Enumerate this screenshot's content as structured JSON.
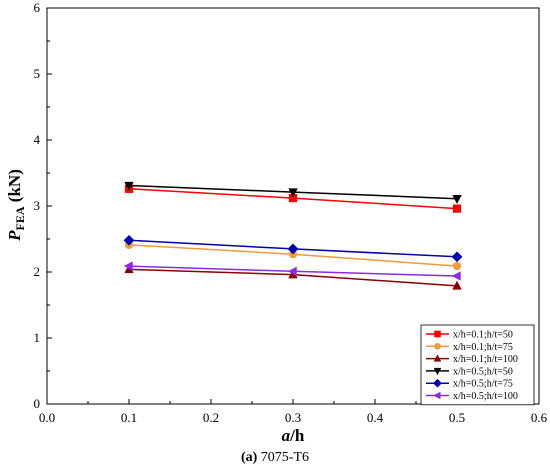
{
  "chart_data": {
    "type": "line",
    "caption_bold": "(a)",
    "caption_text": " 7075-T6",
    "xlabel_italic": "a",
    "xlabel_rest": "/h",
    "ylabel_main": "P",
    "ylabel_sub": "FEA",
    "ylabel_unit": " (kN)",
    "xlim": [
      0.0,
      0.6
    ],
    "ylim": [
      0,
      6
    ],
    "xticks": [
      "0.0",
      "0.1",
      "0.2",
      "0.3",
      "0.4",
      "0.5",
      "0.6"
    ],
    "yticks": [
      "0",
      "1",
      "2",
      "3",
      "4",
      "5",
      "6"
    ],
    "grid": false,
    "legend_position": "bottom-right",
    "x": [
      0.1,
      0.3,
      0.5
    ],
    "series": [
      {
        "name": "x/h=0.1;h/t=50",
        "color": "#ff0000",
        "marker": "square",
        "values": [
          3.26,
          3.12,
          2.96
        ]
      },
      {
        "name": "x/h=0.1;h/t=75",
        "color": "#f39a3b",
        "marker": "circle",
        "values": [
          2.41,
          2.27,
          2.09
        ]
      },
      {
        "name": "x/h=0.1;h/t=100",
        "color": "#8b0000",
        "marker": "triangle-up",
        "values": [
          2.04,
          1.96,
          1.79
        ]
      },
      {
        "name": "x/h=0.5;h/t=50",
        "color": "#000000",
        "marker": "triangle-down",
        "values": [
          3.31,
          3.21,
          3.11
        ]
      },
      {
        "name": "x/h=0.5;h/t=75",
        "color": "#0000b0",
        "marker": "diamond",
        "values": [
          2.48,
          2.35,
          2.23
        ]
      },
      {
        "name": "x/h=0.5;h/t=100",
        "color": "#8a2be2",
        "marker": "triangle-left",
        "values": [
          2.09,
          2.01,
          1.94
        ]
      }
    ]
  }
}
